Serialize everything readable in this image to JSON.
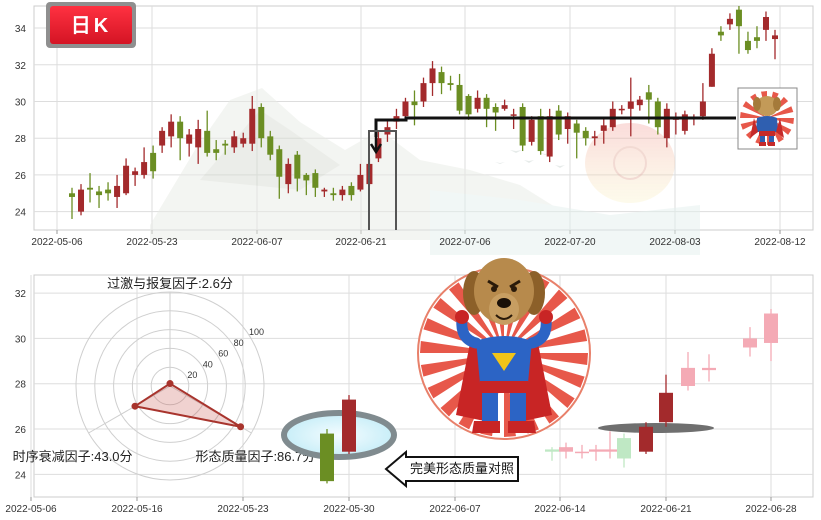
{
  "badge": {
    "label": "日K"
  },
  "chart_data": [
    {
      "type": "candlestick",
      "name_hint": "top-daily-kline",
      "x_ticks": [
        "2022-05-06",
        "2022-05-23",
        "2022-06-07",
        "2022-06-21",
        "2022-07-06",
        "2022-07-20",
        "2022-08-03",
        "2022-08-12"
      ],
      "y_ticks": [
        24,
        26,
        28,
        30,
        32,
        34
      ],
      "ylim": [
        23,
        35.2
      ],
      "grid": true,
      "candles": [
        [
          25.0,
          24.8,
          25.3,
          23.6
        ],
        [
          24.0,
          25.2,
          25.5,
          23.8
        ],
        [
          25.3,
          25.2,
          26.1,
          24.5
        ],
        [
          25.1,
          24.9,
          25.4,
          24.2
        ],
        [
          25.2,
          25.0,
          25.6,
          24.6
        ],
        [
          24.8,
          25.4,
          26.0,
          24.2
        ],
        [
          25.0,
          26.5,
          26.9,
          24.9
        ],
        [
          26.0,
          26.2,
          26.4,
          25.4
        ],
        [
          26.0,
          26.7,
          27.5,
          25.8
        ],
        [
          27.2,
          26.2,
          27.6,
          25.8
        ],
        [
          27.6,
          28.4,
          28.6,
          27.2
        ],
        [
          28.1,
          28.9,
          29.3,
          27.5
        ],
        [
          28.9,
          28.0,
          29.2,
          26.8
        ],
        [
          27.7,
          28.2,
          28.5,
          27.0
        ],
        [
          27.5,
          28.5,
          29.0,
          26.6
        ],
        [
          28.4,
          27.2,
          29.5,
          27.0
        ],
        [
          27.4,
          27.2,
          27.9,
          26.8
        ],
        [
          27.7,
          27.6,
          27.9,
          27.1
        ],
        [
          27.5,
          28.1,
          28.4,
          27.2
        ],
        [
          27.7,
          28.0,
          28.3,
          27.5
        ],
        [
          27.7,
          29.6,
          30.3,
          27.3
        ],
        [
          29.7,
          28.0,
          29.9,
          27.5
        ],
        [
          28.1,
          27.1,
          28.4,
          26.8
        ],
        [
          27.4,
          25.9,
          27.6,
          24.7
        ],
        [
          25.5,
          26.6,
          26.9,
          25.0
        ],
        [
          27.1,
          25.8,
          27.3,
          25.1
        ],
        [
          26.0,
          25.7,
          26.1,
          24.9
        ],
        [
          26.1,
          25.3,
          26.3,
          24.8
        ],
        [
          25.1,
          25.2,
          25.3,
          24.8
        ],
        [
          25.0,
          24.9,
          25.3,
          24.6
        ],
        [
          24.9,
          25.2,
          25.4,
          24.6
        ],
        [
          25.4,
          24.9,
          25.6,
          24.6
        ],
        [
          25.2,
          26.0,
          26.6,
          25.1
        ],
        [
          25.5,
          26.6,
          26.9,
          25.4
        ],
        [
          26.9,
          28.0,
          28.4,
          26.7
        ],
        [
          28.2,
          28.6,
          29.0,
          27.8
        ],
        [
          28.9,
          29.2,
          29.6,
          28.5
        ],
        [
          29.2,
          30.0,
          30.2,
          29.0
        ],
        [
          30.0,
          29.8,
          30.6,
          28.7
        ],
        [
          30.0,
          31.0,
          31.3,
          29.7
        ],
        [
          31.0,
          31.8,
          32.2,
          30.3
        ],
        [
          31.6,
          31.0,
          31.9,
          30.4
        ],
        [
          31.0,
          30.9,
          31.4,
          30.6
        ],
        [
          30.9,
          29.5,
          31.5,
          29.3
        ],
        [
          30.3,
          29.3,
          30.4,
          29.0
        ],
        [
          29.6,
          30.2,
          30.6,
          29.4
        ],
        [
          30.2,
          29.6,
          30.4,
          28.6
        ],
        [
          29.7,
          29.4,
          29.9,
          28.4
        ],
        [
          29.6,
          29.8,
          30.1,
          29.5
        ],
        [
          29.3,
          29.3,
          29.6,
          28.5
        ],
        [
          29.7,
          27.6,
          29.9,
          27.3
        ],
        [
          27.8,
          29.0,
          29.2,
          27.6
        ],
        [
          29.2,
          27.3,
          29.6,
          27.1
        ],
        [
          27.0,
          29.2,
          29.6,
          26.7
        ],
        [
          29.5,
          28.2,
          29.8,
          27.9
        ],
        [
          28.5,
          29.2,
          29.4,
          27.7
        ],
        [
          28.8,
          28.3,
          29.0,
          26.9
        ],
        [
          28.4,
          28.0,
          28.6,
          27.6
        ],
        [
          28.0,
          28.1,
          28.4,
          27.6
        ],
        [
          28.4,
          28.7,
          29.1,
          27.7
        ],
        [
          28.6,
          29.6,
          30.0,
          28.4
        ],
        [
          29.6,
          29.6,
          29.8,
          29.3
        ],
        [
          29.6,
          30.0,
          31.3,
          28.1
        ],
        [
          29.8,
          30.1,
          30.3,
          29.5
        ],
        [
          30.5,
          30.1,
          30.9,
          28.8
        ],
        [
          30.0,
          28.6,
          30.2,
          28.2
        ],
        [
          28.0,
          29.6,
          29.9,
          27.5
        ],
        [
          29.0,
          29.1,
          29.4,
          28.2
        ],
        [
          28.4,
          29.3,
          29.5,
          28.2
        ],
        [
          29.1,
          29.1,
          29.3,
          28.7
        ],
        [
          29.2,
          30.0,
          31.0,
          29.0
        ],
        [
          30.8,
          32.6,
          32.9,
          30.8
        ],
        [
          33.8,
          33.6,
          34.1,
          33.3
        ],
        [
          34.2,
          34.5,
          34.8,
          33.9
        ],
        [
          35.0,
          34.1,
          35.2,
          32.6
        ],
        [
          33.3,
          32.8,
          33.8,
          32.6
        ],
        [
          33.5,
          33.3,
          34.1,
          32.9
        ],
        [
          33.9,
          34.6,
          34.9,
          33.3
        ],
        [
          33.4,
          33.6,
          33.9,
          32.3
        ]
      ]
    },
    {
      "type": "candlestick",
      "name_hint": "bottom-pattern-comparison",
      "x_ticks": [
        "2022-05-06",
        "2022-05-16",
        "2022-05-23",
        "2022-05-30",
        "2022-06-07",
        "2022-06-14",
        "2022-06-21",
        "2022-06-28"
      ],
      "y_ticks": [
        24,
        26,
        28,
        30,
        32
      ],
      "ylim": [
        23,
        32.8
      ],
      "grid": true,
      "candles": [
        [
          25.8,
          23.7,
          26.0,
          23.6
        ],
        [
          25.0,
          27.3,
          27.5,
          24.9
        ],
        [
          25.1,
          25.0,
          25.2,
          24.6
        ],
        [
          25.0,
          25.2,
          25.4,
          24.7
        ],
        [
          25.0,
          25.0,
          25.3,
          24.7
        ],
        [
          25.0,
          25.1,
          25.3,
          24.6
        ],
        [
          25.0,
          25.1,
          25.9,
          24.7
        ],
        [
          25.6,
          24.7,
          25.8,
          24.3
        ],
        [
          25.0,
          26.1,
          26.3,
          24.9
        ],
        [
          26.3,
          27.6,
          28.4,
          26.1
        ],
        [
          27.9,
          28.7,
          29.4,
          27.7
        ],
        [
          28.6,
          28.7,
          29.3,
          28.1
        ],
        [
          29.6,
          30.0,
          30.5,
          29.2
        ],
        [
          29.8,
          31.1,
          31.3,
          29.0
        ]
      ]
    },
    {
      "type": "radar",
      "name_hint": "factor-scores",
      "scale_ticks": [
        20,
        40,
        60,
        80,
        100
      ],
      "axes": [
        {
          "label": "过激与报复因子:2.6分",
          "value": 2.6
        },
        {
          "label": "形态质量因子:86.7分",
          "value": 86.7
        },
        {
          "label": "时序衰减因子:43.0分",
          "value": 43.0
        }
      ]
    }
  ],
  "callout": {
    "text": "完美形态质量对照"
  },
  "colors": {
    "up": "#a32a2c",
    "down": "#6b8e23",
    "faded_up": "#f4aab5",
    "faded_down": "#bfe8c4",
    "grid": "#dddddd",
    "radar_fill": "#c24a43",
    "badge": "#e41b2a"
  },
  "icons": [
    "superhero-dog-sticker-small",
    "superhero-dog-sticker-large",
    "left-arrow-callout",
    "ring-highlight"
  ]
}
